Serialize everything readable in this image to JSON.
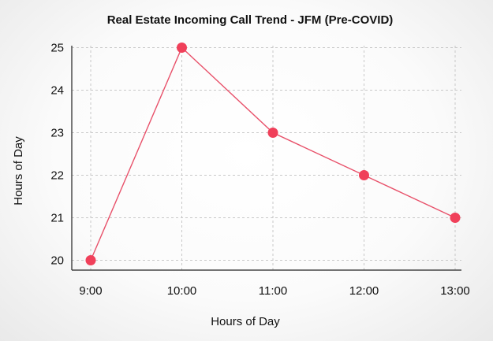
{
  "chart_data": {
    "type": "line",
    "title": "Real Estate Incoming Call Trend - JFM (Pre-COVID)",
    "xlabel": "Hours of Day",
    "ylabel": "Hours of Day",
    "categories": [
      "9:00",
      "10:00",
      "11:00",
      "12:00",
      "13:00"
    ],
    "series": [
      {
        "values": [
          20,
          25,
          23,
          22,
          21
        ]
      }
    ],
    "ylim": [
      20,
      25
    ],
    "yticks": [
      "20",
      "21",
      "22",
      "23",
      "24",
      "25"
    ],
    "grid": true,
    "line_color": "#e8516a",
    "marker_color": "#f0405a"
  }
}
